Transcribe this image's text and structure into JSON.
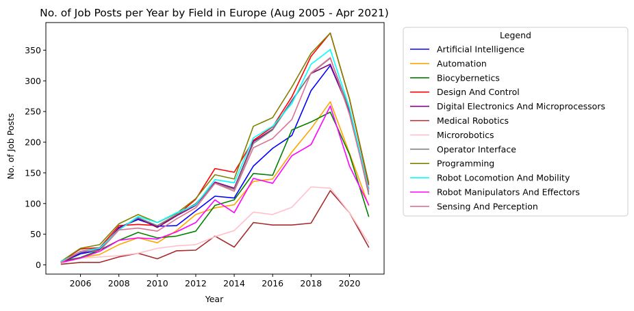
{
  "chart_data": {
    "type": "line",
    "title": "No. of Job Posts per Year by Field in Europe (Aug 2005 - Apr 2021)",
    "xlabel": "Year",
    "ylabel": "No. of Job Posts",
    "x": [
      2005,
      2006,
      2007,
      2008,
      2009,
      2010,
      2011,
      2012,
      2013,
      2014,
      2015,
      2016,
      2017,
      2018,
      2019,
      2020,
      2021
    ],
    "xlim": [
      2004.2,
      2021.8
    ],
    "ylim": [
      -15,
      395
    ],
    "xticks": [
      2006,
      2008,
      2010,
      2012,
      2014,
      2016,
      2018,
      2020
    ],
    "yticks": [
      0,
      50,
      100,
      150,
      200,
      250,
      300,
      350
    ],
    "grid": false,
    "legend_title": "Legend",
    "legend_position": "outside-right",
    "series": [
      {
        "name": "Artificial Intelligence",
        "color": "#0000ff",
        "values": [
          4,
          18,
          24,
          61,
          74,
          63,
          64,
          88,
          112,
          109,
          161,
          190,
          211,
          284,
          325,
          252,
          124
        ]
      },
      {
        "name": "Automation",
        "color": "#ffa500",
        "values": [
          4,
          12,
          17,
          33,
          44,
          36,
          56,
          82,
          93,
          98,
          136,
          140,
          184,
          222,
          266,
          182,
          97
        ]
      },
      {
        "name": "Biocybernetics",
        "color": "#008000",
        "values": [
          6,
          12,
          24,
          40,
          53,
          44,
          47,
          55,
          97,
          106,
          149,
          146,
          220,
          233,
          249,
          180,
          79
        ]
      },
      {
        "name": "Design And Control",
        "color": "#ff0000",
        "values": [
          5,
          26,
          28,
          64,
          66,
          64,
          80,
          107,
          157,
          151,
          203,
          225,
          274,
          340,
          378,
          270,
          131
        ]
      },
      {
        "name": "Digital Electronics And Microprocessors",
        "color": "#800080",
        "values": [
          3,
          20,
          25,
          60,
          76,
          61,
          80,
          97,
          135,
          125,
          201,
          221,
          268,
          312,
          327,
          250,
          124
        ]
      },
      {
        "name": "Medical Robotics",
        "color": "#a52a2a",
        "values": [
          1,
          4,
          4,
          13,
          19,
          10,
          23,
          24,
          47,
          29,
          69,
          65,
          65,
          68,
          121,
          85,
          29
        ]
      },
      {
        "name": "Microrobotics",
        "color": "#ffc0cb",
        "values": [
          3,
          11,
          13,
          15,
          19,
          27,
          31,
          33,
          46,
          56,
          86,
          82,
          94,
          127,
          125,
          85,
          36
        ]
      },
      {
        "name": "Operator Interface",
        "color": "#808080",
        "values": [
          5,
          22,
          28,
          58,
          77,
          64,
          82,
          100,
          133,
          123,
          198,
          220,
          267,
          312,
          337,
          253,
          115
        ]
      },
      {
        "name": "Programming",
        "color": "#808000",
        "values": [
          6,
          27,
          33,
          67,
          82,
          69,
          84,
          108,
          147,
          140,
          226,
          240,
          290,
          345,
          378,
          271,
          134
        ]
      },
      {
        "name": "Robot Locomotion And Mobility",
        "color": "#00ffff",
        "values": [
          6,
          21,
          27,
          57,
          79,
          69,
          85,
          98,
          139,
          134,
          207,
          226,
          263,
          327,
          351,
          256,
          124
        ]
      },
      {
        "name": "Robot Manipulators And Effectors",
        "color": "#ff00ff",
        "values": [
          4,
          11,
          22,
          40,
          44,
          42,
          54,
          69,
          106,
          85,
          141,
          133,
          178,
          196,
          259,
          161,
          98
        ]
      },
      {
        "name": "Sensing And Perception",
        "color": "#db7093",
        "values": [
          4,
          22,
          23,
          57,
          60,
          55,
          75,
          93,
          133,
          120,
          191,
          206,
          237,
          313,
          338,
          245,
          120
        ]
      }
    ]
  }
}
